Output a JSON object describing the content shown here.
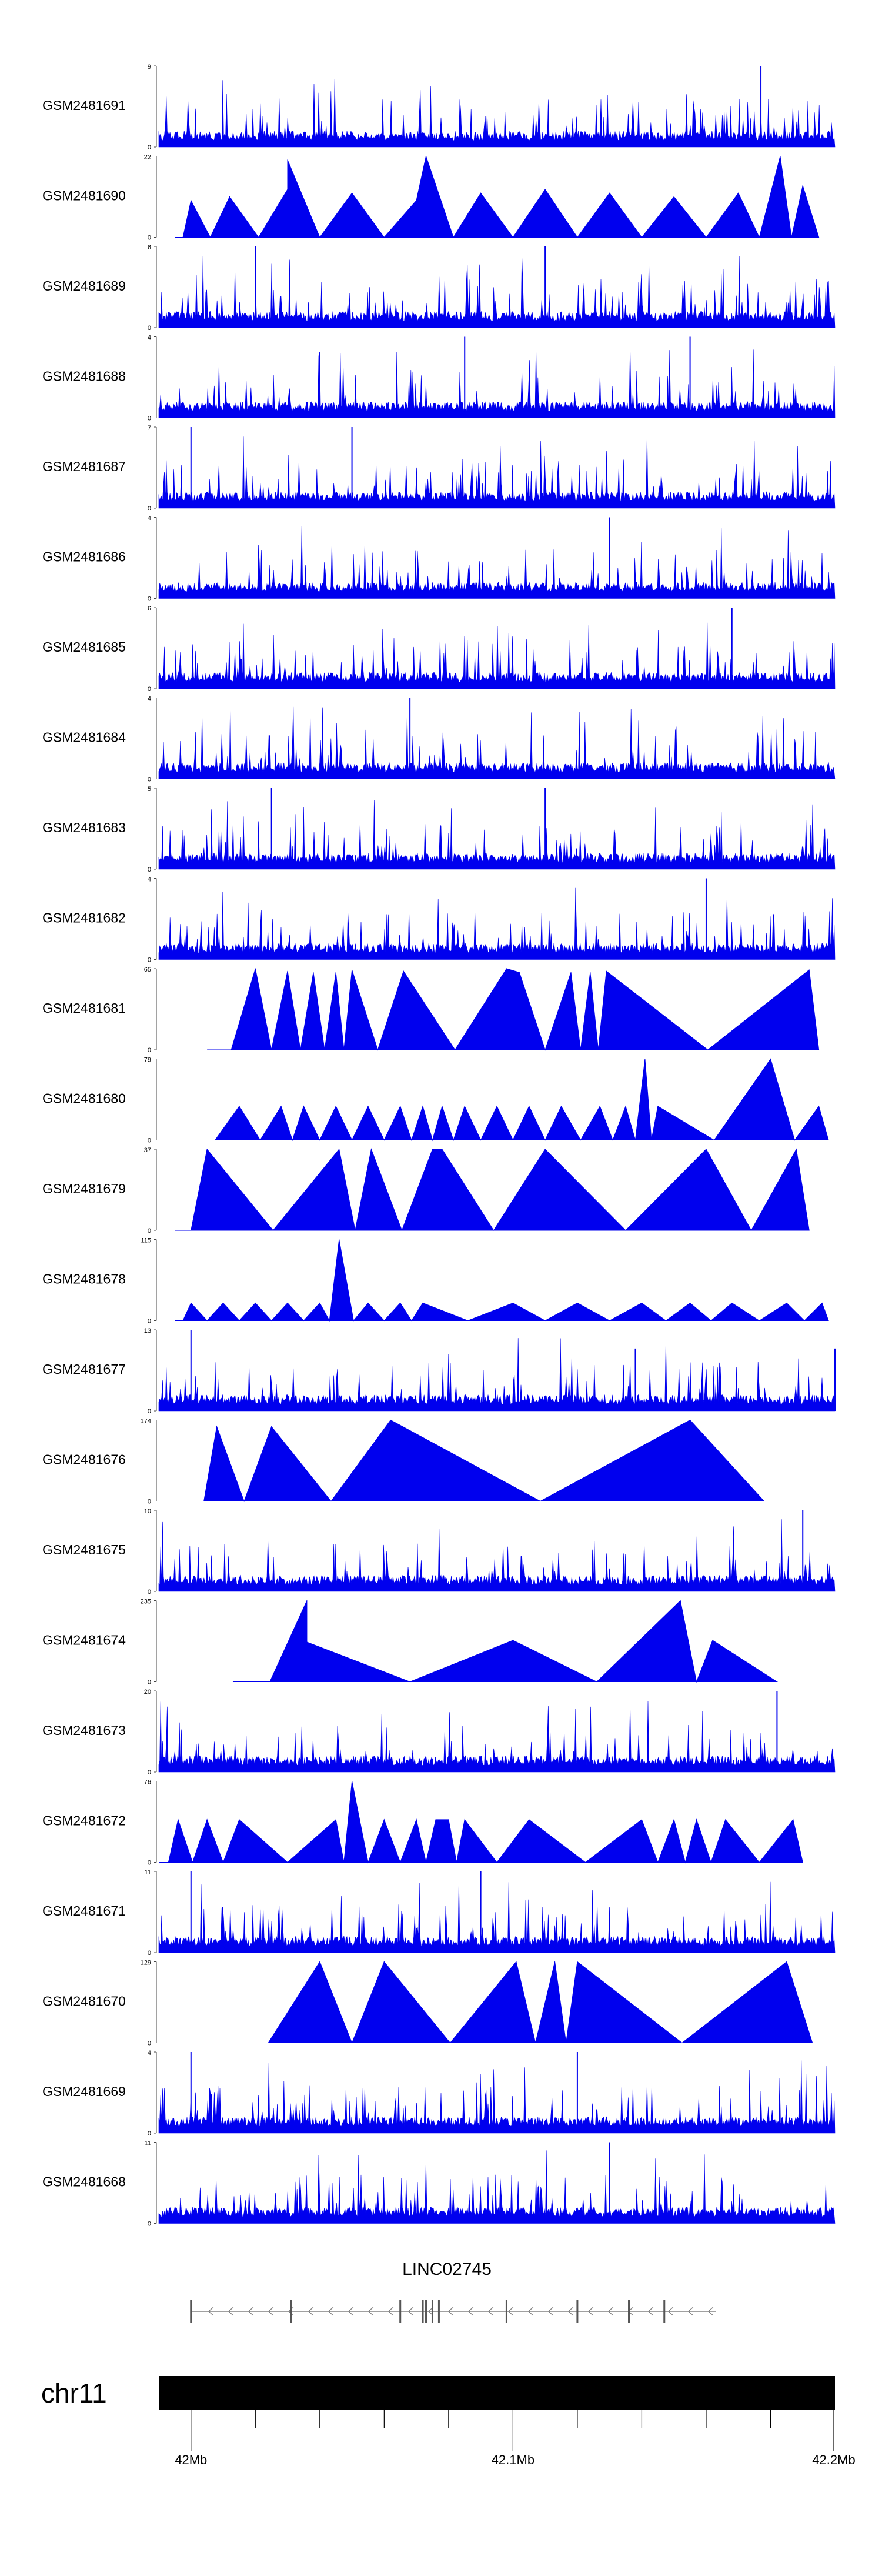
{
  "chart_data": {
    "type": "area",
    "title": "",
    "xlabel": "",
    "ylabel": "",
    "x_range_mb": [
      41.99,
      42.2
    ],
    "grid": false,
    "colors": {
      "track_fill": "#0000ee",
      "chromosome": "#000000",
      "gene": "#808080",
      "text": "#000000"
    },
    "tracks": [
      {
        "name": "GSM2481691",
        "ymax": 9,
        "style": "dense",
        "seed": 11,
        "start_mb": 41.99,
        "end_mb": 42.2,
        "peaks": [
          [
            42.177,
            9
          ]
        ]
      },
      {
        "name": "GSM2481690",
        "ymax": 22,
        "style": "sparse",
        "seed": 12,
        "start_mb": 41.995,
        "end_mb": 42.195,
        "peaks": [
          [
            42.0,
            10
          ],
          [
            42.012,
            11
          ],
          [
            42.03,
            13
          ],
          [
            42.05,
            12
          ],
          [
            42.07,
            10
          ],
          [
            42.09,
            12
          ],
          [
            42.11,
            13
          ],
          [
            42.13,
            12
          ],
          [
            42.15,
            11
          ],
          [
            42.17,
            12
          ],
          [
            42.19,
            14
          ],
          [
            42.073,
            22
          ],
          [
            42.183,
            22
          ],
          [
            42.03,
            21
          ]
        ]
      },
      {
        "name": "GSM2481689",
        "ymax": 6,
        "style": "dense",
        "seed": 13,
        "start_mb": 41.99,
        "end_mb": 42.2,
        "peaks": [
          [
            42.02,
            6
          ],
          [
            42.11,
            6
          ]
        ]
      },
      {
        "name": "GSM2481688",
        "ymax": 4,
        "style": "dense",
        "seed": 14,
        "start_mb": 41.99,
        "end_mb": 42.2,
        "peaks": [
          [
            42.085,
            4
          ],
          [
            42.155,
            4
          ]
        ]
      },
      {
        "name": "GSM2481687",
        "ymax": 7,
        "style": "dense",
        "seed": 15,
        "start_mb": 41.99,
        "end_mb": 42.2,
        "peaks": [
          [
            42.0,
            7
          ],
          [
            42.05,
            7
          ]
        ]
      },
      {
        "name": "GSM2481686",
        "ymax": 4,
        "style": "dense",
        "seed": 16,
        "start_mb": 41.99,
        "end_mb": 42.2,
        "peaks": [
          [
            42.13,
            4
          ]
        ]
      },
      {
        "name": "GSM2481685",
        "ymax": 6,
        "style": "dense",
        "seed": 17,
        "start_mb": 41.99,
        "end_mb": 42.2,
        "peaks": [
          [
            42.168,
            6
          ]
        ]
      },
      {
        "name": "GSM2481684",
        "ymax": 4,
        "style": "dense",
        "seed": 18,
        "start_mb": 41.99,
        "end_mb": 42.2,
        "peaks": [
          [
            42.068,
            4
          ]
        ]
      },
      {
        "name": "GSM2481683",
        "ymax": 5,
        "style": "dense",
        "seed": 19,
        "start_mb": 41.99,
        "end_mb": 42.2,
        "peaks": [
          [
            42.025,
            5
          ],
          [
            42.11,
            5
          ]
        ]
      },
      {
        "name": "GSM2481682",
        "ymax": 4,
        "style": "dense",
        "seed": 20,
        "start_mb": 41.99,
        "end_mb": 42.2,
        "peaks": [
          [
            42.16,
            4
          ]
        ]
      },
      {
        "name": "GSM2481681",
        "ymax": 65,
        "style": "sparse",
        "seed": 21,
        "start_mb": 42.005,
        "end_mb": 42.195,
        "peaks": [
          [
            42.02,
            65
          ],
          [
            42.03,
            63
          ],
          [
            42.038,
            62
          ],
          [
            42.045,
            62
          ],
          [
            42.05,
            64
          ],
          [
            42.066,
            63
          ],
          [
            42.098,
            65
          ],
          [
            42.102,
            62
          ],
          [
            42.118,
            62
          ],
          [
            42.124,
            62
          ],
          [
            42.129,
            63
          ],
          [
            42.192,
            64
          ]
        ]
      },
      {
        "name": "GSM2481680",
        "ymax": 79,
        "style": "sparse",
        "seed": 22,
        "start_mb": 42.0,
        "end_mb": 42.198,
        "peaks": [
          [
            42.015,
            33
          ],
          [
            42.028,
            33
          ],
          [
            42.035,
            33
          ],
          [
            42.045,
            33
          ],
          [
            42.055,
            33
          ],
          [
            42.065,
            33
          ],
          [
            42.072,
            33
          ],
          [
            42.078,
            33
          ],
          [
            42.085,
            33
          ],
          [
            42.095,
            33
          ],
          [
            42.105,
            33
          ],
          [
            42.115,
            33
          ],
          [
            42.127,
            33
          ],
          [
            42.135,
            33
          ],
          [
            42.145,
            33
          ],
          [
            42.141,
            79
          ],
          [
            42.18,
            79
          ],
          [
            42.195,
            33
          ]
        ]
      },
      {
        "name": "GSM2481679",
        "ymax": 37,
        "style": "sparse",
        "seed": 23,
        "start_mb": 41.995,
        "end_mb": 42.192,
        "peaks": [
          [
            42.005,
            37
          ],
          [
            42.046,
            37
          ],
          [
            42.056,
            37
          ],
          [
            42.075,
            37
          ],
          [
            42.078,
            37
          ],
          [
            42.11,
            37
          ],
          [
            42.16,
            37
          ],
          [
            42.188,
            37
          ]
        ]
      },
      {
        "name": "GSM2481678",
        "ymax": 115,
        "style": "sparse",
        "seed": 24,
        "start_mb": 41.995,
        "end_mb": 42.198,
        "peaks": [
          [
            42.0,
            25
          ],
          [
            42.01,
            25
          ],
          [
            42.02,
            25
          ],
          [
            42.03,
            25
          ],
          [
            42.04,
            25
          ],
          [
            42.046,
            115
          ],
          [
            42.055,
            25
          ],
          [
            42.065,
            25
          ],
          [
            42.072,
            25
          ],
          [
            42.1,
            25
          ],
          [
            42.12,
            25
          ],
          [
            42.14,
            25
          ],
          [
            42.155,
            25
          ],
          [
            42.168,
            25
          ],
          [
            42.185,
            25
          ],
          [
            42.196,
            25
          ]
        ]
      },
      {
        "name": "GSM2481677",
        "ymax": 13,
        "style": "dense",
        "seed": 25,
        "start_mb": 41.99,
        "end_mb": 42.2,
        "peaks": [
          [
            42.0,
            13
          ],
          [
            42.138,
            10
          ],
          [
            42.2,
            10
          ]
        ]
      },
      {
        "name": "GSM2481676",
        "ymax": 174,
        "style": "sparse",
        "seed": 26,
        "start_mb": 42.0,
        "end_mb": 42.178,
        "peaks": [
          [
            42.008,
            160
          ],
          [
            42.025,
            160
          ],
          [
            42.062,
            174
          ],
          [
            42.155,
            174
          ]
        ]
      },
      {
        "name": "GSM2481675",
        "ymax": 10,
        "style": "dense",
        "seed": 27,
        "start_mb": 41.99,
        "end_mb": 42.2,
        "peaks": [
          [
            42.19,
            10
          ]
        ]
      },
      {
        "name": "GSM2481674",
        "ymax": 235,
        "style": "sparse",
        "seed": 28,
        "start_mb": 42.013,
        "end_mb": 42.182,
        "peaks": [
          [
            42.036,
            235
          ],
          [
            42.036,
            115
          ],
          [
            42.1,
            120
          ],
          [
            42.152,
            235
          ],
          [
            42.162,
            120
          ]
        ]
      },
      {
        "name": "GSM2481673",
        "ymax": 20,
        "style": "dense",
        "seed": 29,
        "start_mb": 41.99,
        "end_mb": 42.2,
        "peaks": [
          [
            42.182,
            20
          ]
        ]
      },
      {
        "name": "GSM2481672",
        "ymax": 76,
        "style": "sparse",
        "seed": 30,
        "start_mb": 41.99,
        "end_mb": 42.19,
        "peaks": [
          [
            41.996,
            40
          ],
          [
            42.005,
            40
          ],
          [
            42.015,
            40
          ],
          [
            42.045,
            40
          ],
          [
            42.05,
            76
          ],
          [
            42.06,
            40
          ],
          [
            42.07,
            40
          ],
          [
            42.076,
            40
          ],
          [
            42.08,
            40
          ],
          [
            42.085,
            40
          ],
          [
            42.105,
            40
          ],
          [
            42.14,
            40
          ],
          [
            42.15,
            40
          ],
          [
            42.157,
            40
          ],
          [
            42.166,
            40
          ],
          [
            42.187,
            40
          ]
        ]
      },
      {
        "name": "GSM2481671",
        "ymax": 11,
        "style": "dense",
        "seed": 31,
        "start_mb": 41.99,
        "end_mb": 42.2,
        "peaks": [
          [
            42.0,
            11
          ],
          [
            42.09,
            11
          ]
        ]
      },
      {
        "name": "GSM2481670",
        "ymax": 129,
        "style": "sparse",
        "seed": 32,
        "start_mb": 42.008,
        "end_mb": 42.193,
        "peaks": [
          [
            42.04,
            129
          ],
          [
            42.06,
            129
          ],
          [
            42.101,
            129
          ],
          [
            42.113,
            129
          ],
          [
            42.12,
            129
          ],
          [
            42.185,
            129
          ]
        ]
      },
      {
        "name": "GSM2481669",
        "ymax": 4,
        "style": "dense",
        "seed": 33,
        "start_mb": 41.99,
        "end_mb": 42.2,
        "peaks": [
          [
            42.0,
            4
          ],
          [
            42.12,
            4
          ]
        ]
      },
      {
        "name": "GSM2481668",
        "ymax": 11,
        "style": "dense",
        "seed": 34,
        "start_mb": 41.99,
        "end_mb": 42.2,
        "peaks": [
          [
            42.13,
            11
          ]
        ]
      }
    ],
    "gene": {
      "name": "LINC02745",
      "start_mb": 42.0,
      "end_mb": 42.163,
      "strand": "-",
      "exons_mb": [
        42.0,
        42.031,
        42.065,
        42.072,
        42.073,
        42.075,
        42.077,
        42.098,
        42.12,
        42.136,
        42.147
      ]
    },
    "ideogram": {
      "label": "chr11",
      "minor_ticks_mb": [
        42.02,
        42.04,
        42.06,
        42.08,
        42.12,
        42.14,
        42.16,
        42.18
      ],
      "major_ticks_mb": [
        42.0,
        42.1,
        42.2
      ],
      "tick_labels": [
        "42Mb",
        "42.1Mb",
        "42.2Mb"
      ]
    }
  }
}
